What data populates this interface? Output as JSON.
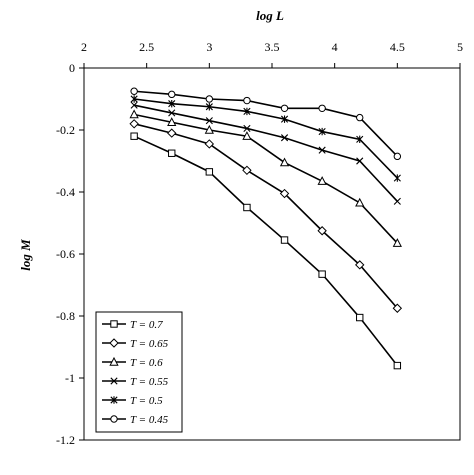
{
  "chart_data": {
    "type": "line",
    "xlabel": "log L",
    "ylabel": "log M",
    "xlim": [
      2,
      5
    ],
    "ylim": [
      -1.2,
      0
    ],
    "x_ticks": [
      "2",
      "2.5",
      "3",
      "3.5",
      "4",
      "4.5",
      "5"
    ],
    "y_ticks": [
      "0",
      "-0.2",
      "-0.4",
      "-0.6",
      "-0.8",
      "-1",
      "-1.2"
    ],
    "x_axis_position": "top",
    "grid": false,
    "legend_position": "bottom-left",
    "x": [
      2.4,
      2.7,
      3.0,
      3.3,
      3.6,
      3.9,
      4.2,
      4.5
    ],
    "series": [
      {
        "name": "T = 0.7",
        "marker": "square",
        "values": [
          -0.22,
          -0.275,
          -0.335,
          -0.45,
          -0.555,
          -0.665,
          -0.805,
          -0.96
        ]
      },
      {
        "name": "T = 0.65",
        "marker": "diamond",
        "values": [
          -0.18,
          -0.21,
          -0.245,
          -0.33,
          -0.405,
          -0.525,
          -0.635,
          -0.775
        ]
      },
      {
        "name": "T = 0.6",
        "marker": "triangle",
        "values": [
          -0.15,
          -0.175,
          -0.2,
          -0.22,
          -0.305,
          -0.365,
          -0.435,
          -0.565
        ]
      },
      {
        "name": "T = 0.55",
        "marker": "x",
        "values": [
          -0.12,
          -0.145,
          -0.17,
          -0.195,
          -0.225,
          -0.265,
          -0.3,
          -0.43
        ]
      },
      {
        "name": "T = 0.5",
        "marker": "star",
        "values": [
          -0.1,
          -0.115,
          -0.125,
          -0.14,
          -0.165,
          -0.205,
          -0.23,
          -0.355
        ]
      },
      {
        "name": "T = 0.45",
        "marker": "circle",
        "values": [
          -0.075,
          -0.085,
          -0.1,
          -0.105,
          -0.13,
          -0.13,
          -0.16,
          -0.285
        ]
      }
    ]
  }
}
